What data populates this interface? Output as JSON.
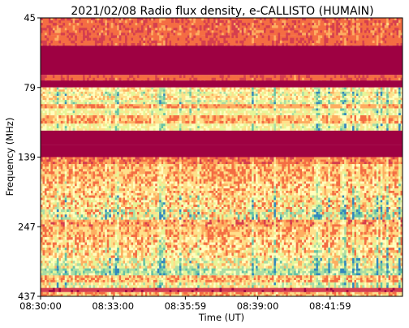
{
  "chart_data": {
    "type": "heatmap",
    "title": "2021/02/08  Radio flux density, e-CALLISTO (HUMAIN)",
    "xlabel": "Time (UT)",
    "ylabel": "Frequency (MHz)",
    "x_tick_labels": [
      "08:30:00",
      "08:33:00",
      "08:35:59",
      "08:39:00",
      "08:41:59"
    ],
    "y_tick_labels": [
      "45",
      "79",
      "139",
      "247",
      "437"
    ],
    "x_range_seconds": [
      0,
      900
    ],
    "y_range_rank": [
      0,
      4
    ],
    "colormap": [
      "#9e0142",
      "#d53e4f",
      "#f46d43",
      "#fdae61",
      "#fee08b",
      "#ffffbf",
      "#e6f598",
      "#abdda4",
      "#66c2a5",
      "#3288bd"
    ],
    "frequency_bands": [
      {
        "from": 0.0,
        "to": 0.25,
        "level": 0.22,
        "spread": 0.1,
        "burst": 0.1
      },
      {
        "from": 0.25,
        "to": 0.4,
        "level": 0.2,
        "spread": 0.1,
        "burst": 0.1
      },
      {
        "from": 0.4,
        "to": 0.82,
        "level": 0.0,
        "spread": 0.01,
        "burst": 0.0
      },
      {
        "from": 0.82,
        "to": 0.9,
        "level": 0.2,
        "spread": 0.1,
        "burst": 0.05
      },
      {
        "from": 0.9,
        "to": 1.0,
        "level": 0.0,
        "spread": 0.01,
        "burst": 0.0
      },
      {
        "from": 1.0,
        "to": 1.06,
        "level": 0.45,
        "spread": 0.15,
        "burst": 0.4
      },
      {
        "from": 1.06,
        "to": 1.12,
        "level": 0.55,
        "spread": 0.18,
        "burst": 0.4
      },
      {
        "from": 1.12,
        "to": 1.18,
        "level": 0.45,
        "spread": 0.15,
        "burst": 0.4
      },
      {
        "from": 1.18,
        "to": 1.24,
        "level": 0.6,
        "spread": 0.15,
        "burst": 0.35
      },
      {
        "from": 1.24,
        "to": 1.3,
        "level": 0.3,
        "spread": 0.1,
        "burst": 0.4
      },
      {
        "from": 1.3,
        "to": 1.4,
        "level": 0.55,
        "spread": 0.15,
        "burst": 0.3
      },
      {
        "from": 1.4,
        "to": 1.52,
        "level": 0.35,
        "spread": 0.12,
        "burst": 0.3
      },
      {
        "from": 1.52,
        "to": 1.62,
        "level": 0.55,
        "spread": 0.15,
        "burst": 0.35
      },
      {
        "from": 1.62,
        "to": 1.82,
        "level": 0.0,
        "spread": 0.01,
        "burst": 0.0
      },
      {
        "from": 1.82,
        "to": 2.0,
        "level": 0.0,
        "spread": 0.01,
        "burst": 0.0
      },
      {
        "from": 2.0,
        "to": 2.1,
        "level": 0.25,
        "spread": 0.1,
        "burst": 0.15
      },
      {
        "from": 2.1,
        "to": 2.35,
        "level": 0.35,
        "spread": 0.15,
        "burst": 0.25
      },
      {
        "from": 2.35,
        "to": 2.55,
        "level": 0.4,
        "spread": 0.18,
        "burst": 0.3
      },
      {
        "from": 2.55,
        "to": 2.75,
        "level": 0.45,
        "spread": 0.25,
        "burst": 0.4
      },
      {
        "from": 2.75,
        "to": 2.9,
        "level": 0.55,
        "spread": 0.3,
        "burst": 0.5
      },
      {
        "from": 2.9,
        "to": 3.0,
        "level": 0.3,
        "spread": 0.15,
        "burst": 0.25
      },
      {
        "from": 3.0,
        "to": 3.15,
        "level": 0.35,
        "spread": 0.15,
        "burst": 0.3
      },
      {
        "from": 3.15,
        "to": 3.3,
        "level": 0.4,
        "spread": 0.2,
        "burst": 0.35
      },
      {
        "from": 3.3,
        "to": 3.45,
        "level": 0.45,
        "spread": 0.2,
        "burst": 0.4
      },
      {
        "from": 3.45,
        "to": 3.6,
        "level": 0.55,
        "spread": 0.25,
        "burst": 0.45
      },
      {
        "from": 3.6,
        "to": 3.7,
        "level": 0.7,
        "spread": 0.15,
        "burst": 0.3
      },
      {
        "from": 3.7,
        "to": 3.8,
        "level": 0.35,
        "spread": 0.15,
        "burst": 0.35
      },
      {
        "from": 3.8,
        "to": 3.88,
        "level": 0.55,
        "spread": 0.2,
        "burst": 0.3
      },
      {
        "from": 3.88,
        "to": 3.94,
        "level": 0.1,
        "spread": 0.05,
        "burst": 0.05
      },
      {
        "from": 3.94,
        "to": 4.0,
        "level": 0.35,
        "spread": 0.15,
        "burst": 0.2
      }
    ]
  }
}
